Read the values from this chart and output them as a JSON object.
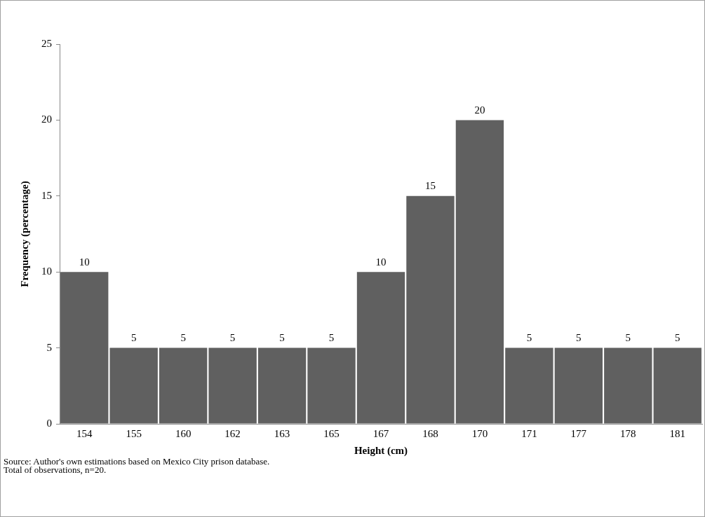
{
  "chart_data": {
    "type": "bar",
    "xlabel": "Height (cm)",
    "ylabel": "Frequency (percentage)",
    "categories": [
      "154",
      "155",
      "160",
      "162",
      "163",
      "165",
      "167",
      "168",
      "170",
      "171",
      "177",
      "178",
      "181"
    ],
    "values": [
      10,
      5,
      5,
      5,
      5,
      5,
      10,
      15,
      20,
      5,
      5,
      5,
      5
    ],
    "color": "#606060",
    "ylim": [
      0,
      25
    ],
    "yticks": [
      0,
      5,
      10,
      15,
      20,
      25
    ],
    "grid": false,
    "legend": false,
    "data_labels": true,
    "annotations": [
      "Source: Author's own estimations based on Mexico City prison database.",
      "Total of observations, n=20."
    ]
  }
}
